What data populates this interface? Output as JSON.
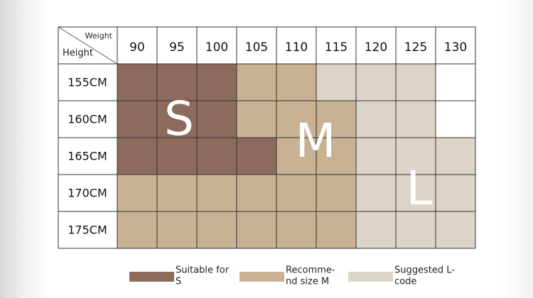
{
  "table": {
    "corner": {
      "top": "Weight",
      "bottom": "Height"
    },
    "columns": [
      "90",
      "95",
      "100",
      "105",
      "110",
      "115",
      "120",
      "125",
      "130"
    ],
    "rows": [
      "155CM",
      "160CM",
      "165CM",
      "170CM",
      "175CM"
    ]
  },
  "overlay": {
    "s": "S",
    "m": "M",
    "l": "L"
  },
  "legend": [
    {
      "lines": [
        "Suitable for",
        "S"
      ]
    },
    {
      "lines": [
        "Recomme-",
        "nd size M"
      ]
    },
    {
      "lines": [
        "Suggested L-",
        "code"
      ]
    }
  ]
}
